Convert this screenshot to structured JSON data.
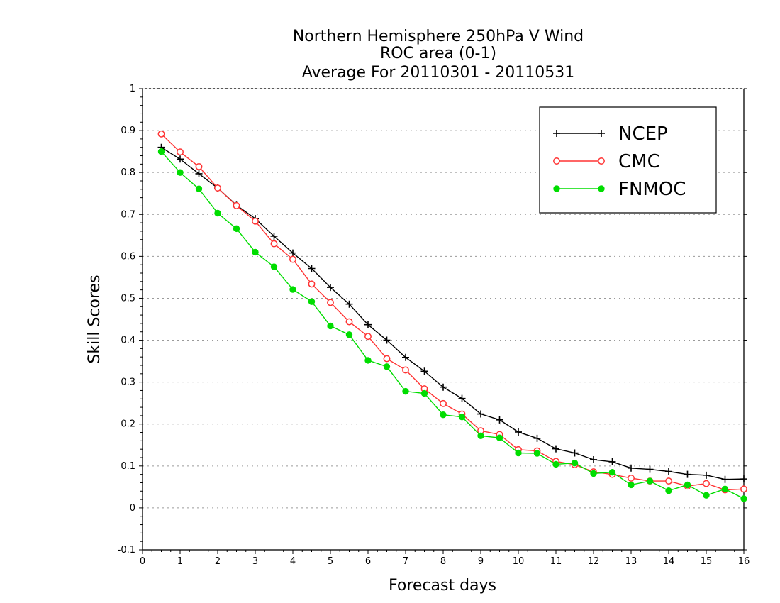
{
  "chart_data": {
    "type": "line",
    "title_lines": [
      "Northern Hemisphere 250hPa V Wind",
      "ROC area (0-1)",
      "Average For 20110301 - 20110531"
    ],
    "xlabel": "Forecast days",
    "ylabel": "Skill Scores",
    "xlim": [
      0,
      16
    ],
    "ylim": [
      -0.1,
      1
    ],
    "x_ticks": [
      0,
      1,
      2,
      3,
      4,
      5,
      6,
      7,
      8,
      9,
      10,
      11,
      12,
      13,
      14,
      15,
      16
    ],
    "x_tick_labels": [
      "0",
      "1",
      "2",
      "3",
      "4",
      "5",
      "6",
      "7",
      "8",
      "9",
      "10",
      "11",
      "12",
      "13",
      "14",
      "15",
      "16"
    ],
    "y_ticks": [
      -0.1,
      0,
      0.1,
      0.2,
      0.3,
      0.4,
      0.5,
      0.6,
      0.7,
      0.8,
      0.9,
      1
    ],
    "y_tick_labels": [
      "-0.1",
      "0",
      "0.1",
      "0.2",
      "0.3",
      "0.4",
      "0.5",
      "0.6",
      "0.7",
      "0.8",
      "0.9",
      "1"
    ],
    "grid": "horizontal dotted",
    "legend_position": "top-right",
    "x": [
      0.5,
      1,
      1.5,
      2,
      2.5,
      3,
      3.5,
      4,
      4.5,
      5,
      5.5,
      6,
      6.5,
      7,
      7.5,
      8,
      8.5,
      9,
      9.5,
      10,
      10.5,
      11,
      11.5,
      12,
      12.5,
      13,
      13.5,
      14,
      14.5,
      15,
      15.5,
      16
    ],
    "series": [
      {
        "name": "NCEP",
        "color": "#000000",
        "marker": "plus",
        "values": [
          0.86,
          0.832,
          0.797,
          0.763,
          0.722,
          0.69,
          0.648,
          0.608,
          0.571,
          0.526,
          0.486,
          0.437,
          0.4,
          0.359,
          0.326,
          0.288,
          0.261,
          0.224,
          0.21,
          0.181,
          0.166,
          0.141,
          0.131,
          0.115,
          0.11,
          0.095,
          0.092,
          0.087,
          0.08,
          0.078,
          0.068,
          0.069
        ]
      },
      {
        "name": "CMC",
        "color": "#ff3333",
        "marker": "open-circle",
        "values": [
          0.892,
          0.849,
          0.814,
          0.763,
          0.721,
          0.684,
          0.63,
          0.593,
          0.534,
          0.49,
          0.444,
          0.409,
          0.356,
          0.329,
          0.284,
          0.249,
          0.224,
          0.184,
          0.175,
          0.139,
          0.136,
          0.111,
          0.103,
          0.086,
          0.08,
          0.071,
          0.064,
          0.064,
          0.052,
          0.058,
          0.043,
          0.045
        ]
      },
      {
        "name": "FNMOC",
        "color": "#00dd00",
        "marker": "filled-circle",
        "values": [
          0.85,
          0.8,
          0.761,
          0.703,
          0.666,
          0.61,
          0.575,
          0.521,
          0.492,
          0.434,
          0.413,
          0.352,
          0.337,
          0.278,
          0.273,
          0.222,
          0.217,
          0.172,
          0.167,
          0.131,
          0.13,
          0.104,
          0.107,
          0.082,
          0.085,
          0.055,
          0.064,
          0.041,
          0.055,
          0.03,
          0.045,
          0.022
        ]
      }
    ]
  }
}
